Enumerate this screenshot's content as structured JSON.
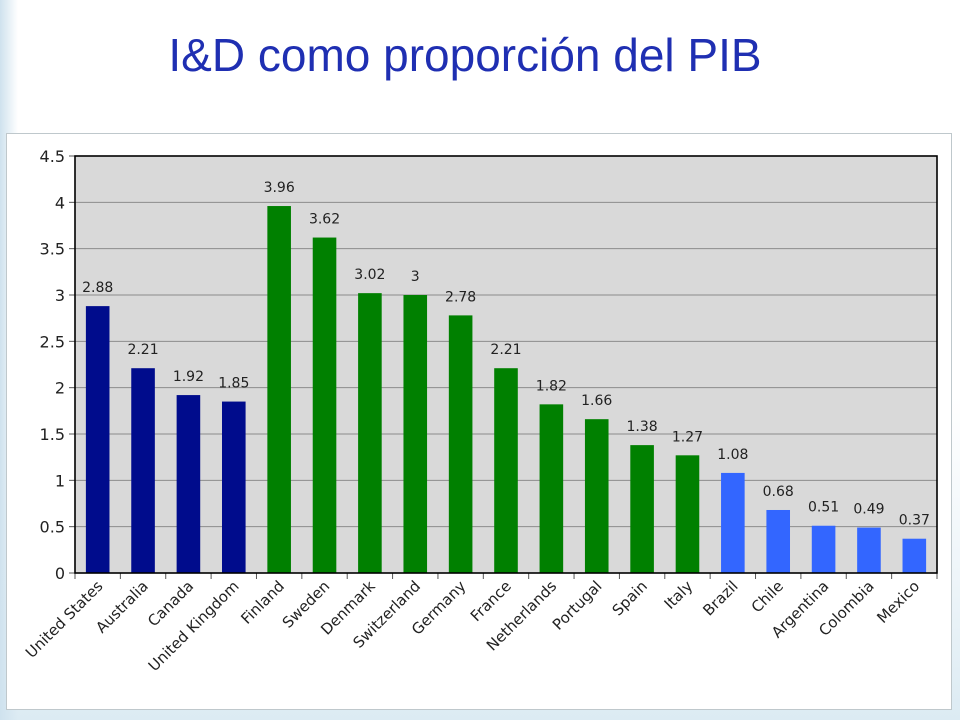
{
  "page": {
    "title": "I&D como proporción del PIB"
  },
  "chart_data": {
    "type": "bar",
    "categories": [
      "United States",
      "Australia",
      "Canada",
      "United Kingdom",
      "Finland",
      "Sweden",
      "Denmark",
      "Switzerland",
      "Germany",
      "France",
      "Netherlands",
      "Portugal",
      "Spain",
      "Italy",
      "Brazil",
      "Chile",
      "Argentina",
      "Colombia",
      "Mexico"
    ],
    "values": [
      2.88,
      2.21,
      1.92,
      1.85,
      3.96,
      3.62,
      3.02,
      3,
      2.78,
      2.21,
      1.82,
      1.66,
      1.38,
      1.27,
      1.08,
      0.68,
      0.51,
      0.49,
      0.37
    ],
    "bar_colors": [
      "#000c8c",
      "#000c8c",
      "#000c8c",
      "#000c8c",
      "#008000",
      "#008000",
      "#008000",
      "#008000",
      "#008000",
      "#008000",
      "#008000",
      "#008000",
      "#008000",
      "#008000",
      "#3366ff",
      "#3366ff",
      "#3366ff",
      "#3366ff",
      "#3366ff"
    ],
    "data_labels": [
      "2.88",
      "2.21",
      "1.92",
      "1.85",
      "3.96",
      "3.62",
      "3.02",
      "3",
      "2.78",
      "2.21",
      "1.82",
      "1.66",
      "1.38",
      "1.27",
      "1.08",
      "0.68",
      "0.51",
      "0.49",
      "0.37"
    ],
    "yticks": [
      0,
      0.5,
      1,
      1.5,
      2,
      2.5,
      3,
      3.5,
      4,
      4.5
    ],
    "ytick_labels": [
      "0",
      "0.5",
      "1",
      "1.5",
      "2",
      "2.5",
      "3",
      "3.5",
      "4",
      "4.5"
    ],
    "ylim": [
      0,
      4.5
    ],
    "grid": true,
    "legend": "none",
    "xlabel": "",
    "ylabel": "",
    "plot_background": "#d9d9d9",
    "tick_label_color": "#222222"
  }
}
